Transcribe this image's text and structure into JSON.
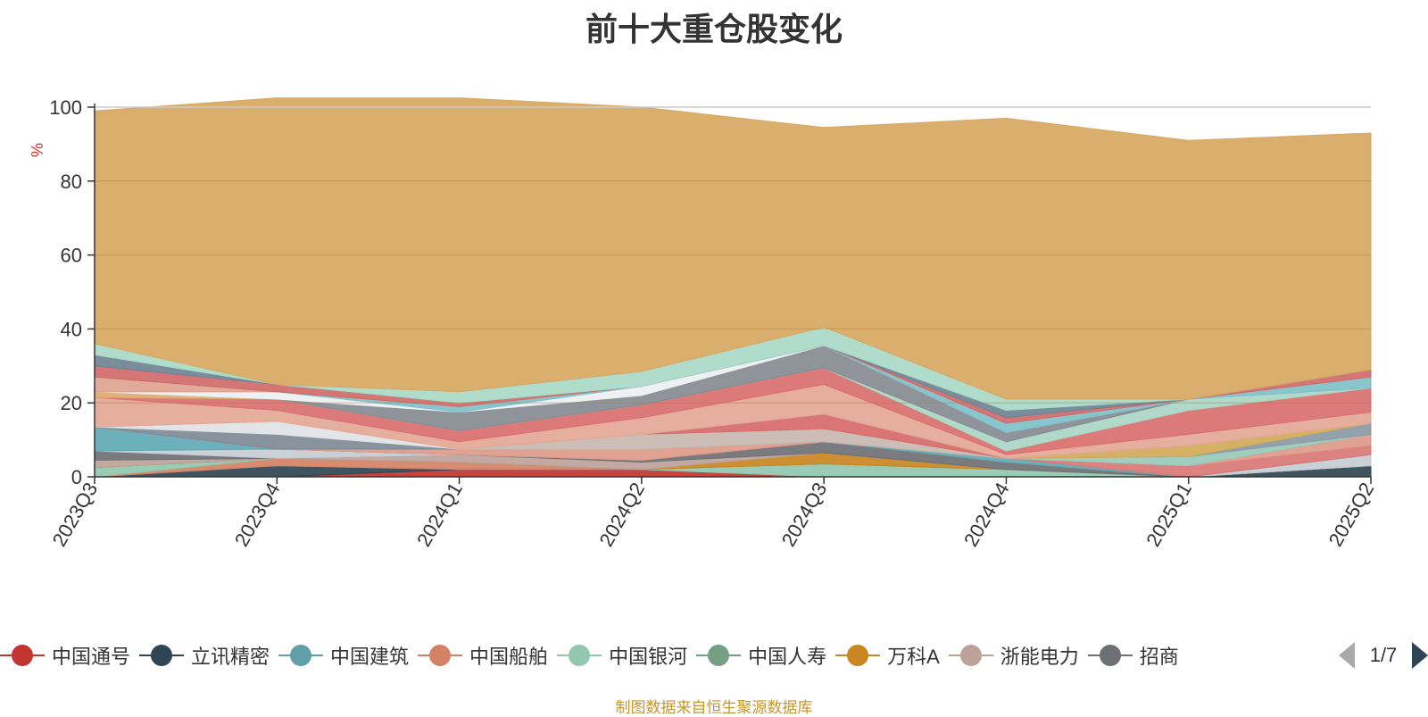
{
  "chart_data": {
    "type": "area",
    "stacked": true,
    "title": "前十大重仓股变化",
    "ylabel": "%",
    "ylim": [
      0,
      100
    ],
    "yticks": [
      0,
      20,
      40,
      60,
      80,
      100
    ],
    "categories": [
      "2023Q3",
      "2023Q4",
      "2024Q1",
      "2024Q2",
      "2024Q3",
      "2024Q4",
      "2025Q1",
      "2025Q2"
    ],
    "series": [
      {
        "name": "中国通号",
        "color": "#c23531",
        "values": [
          0,
          0,
          2,
          2,
          0,
          0,
          0,
          0
        ]
      },
      {
        "name": "立讯精密",
        "color": "#2f4554",
        "values": [
          0,
          3,
          0,
          0,
          0,
          0,
          0,
          3
        ]
      },
      {
        "name": "中国建筑",
        "color": "#61a0a8",
        "values": [
          0,
          0,
          0,
          0,
          0,
          0,
          0,
          0
        ]
      },
      {
        "name": "中国船舶",
        "color": "#d48265",
        "values": [
          0,
          2,
          2,
          0,
          0,
          0,
          0,
          0
        ]
      },
      {
        "name": "中国银河",
        "color": "#91c7ae",
        "values": [
          2.5,
          0,
          0,
          0,
          3.5,
          2,
          0,
          0
        ]
      },
      {
        "name": "中国人寿",
        "color": "#749f83",
        "values": [
          0,
          0,
          0,
          0,
          0,
          0,
          0,
          0
        ]
      },
      {
        "name": "万科A",
        "color": "#ca8622",
        "values": [
          0,
          0,
          0,
          0,
          3,
          0,
          0,
          0
        ]
      },
      {
        "name": "浙能电力",
        "color": "#bda29a",
        "values": [
          2,
          0,
          2,
          2,
          0,
          0,
          0,
          0
        ]
      },
      {
        "name": "招商",
        "color": "#6e7074",
        "values": [
          2.5,
          0,
          0,
          0.5,
          3,
          2,
          0,
          0
        ]
      },
      {
        "name": "",
        "color": "#c4ccd3",
        "values": [
          0,
          2.5,
          0,
          0,
          0,
          0,
          0,
          3
        ]
      },
      {
        "name": "",
        "color": "#5fa9b5",
        "values": [
          6.5,
          0,
          0,
          0,
          0,
          1,
          0,
          0
        ]
      },
      {
        "name": "",
        "color": "#d97775",
        "values": [
          0,
          0,
          0,
          0,
          0,
          0,
          3,
          2.5
        ]
      },
      {
        "name": "",
        "color": "#dd9a8a",
        "values": [
          0,
          0,
          1.5,
          3,
          0,
          0,
          0,
          3
        ]
      },
      {
        "name": "",
        "color": "#99c9b8",
        "values": [
          0,
          0,
          0,
          0,
          0,
          0,
          2.5,
          0
        ]
      },
      {
        "name": "",
        "color": "#8a9aa3",
        "values": [
          0,
          0,
          0,
          0,
          0,
          0,
          0,
          3
        ]
      },
      {
        "name": "",
        "color": "#d2aa58",
        "values": [
          0,
          0,
          0,
          0,
          0,
          0,
          3,
          0
        ]
      },
      {
        "name": "",
        "color": "#c8b8b0",
        "values": [
          0,
          0,
          0,
          4,
          3.5,
          0,
          0,
          0
        ]
      },
      {
        "name": "",
        "color": "#d66a69",
        "values": [
          0,
          0,
          0,
          0,
          4,
          0,
          0,
          0
        ]
      },
      {
        "name": "",
        "color": "#7e8a96",
        "values": [
          0,
          4,
          0,
          0,
          0,
          0,
          0,
          0
        ]
      },
      {
        "name": "",
        "color": "#e0e2e6",
        "values": [
          0,
          3.5,
          0,
          0,
          0,
          0,
          0,
          0
        ]
      },
      {
        "name": "",
        "color": "#e4a794",
        "values": [
          8,
          3,
          2,
          4.5,
          8,
          1,
          3,
          3
        ]
      },
      {
        "name": "",
        "color": "#d96f6e",
        "values": [
          0,
          3,
          3,
          3.5,
          4.5,
          1,
          6.5,
          6.5
        ]
      },
      {
        "name": "",
        "color": "#dcab6e",
        "values": [
          1.5,
          0,
          0,
          0,
          0,
          0,
          0,
          0
        ]
      },
      {
        "name": "",
        "color": "#a9d6c6",
        "values": [
          0,
          0,
          0,
          0,
          0,
          2.5,
          3,
          0
        ]
      },
      {
        "name": "",
        "color": "#858b93",
        "values": [
          0,
          0,
          5,
          2.5,
          6,
          2.5,
          0,
          0
        ]
      },
      {
        "name": "",
        "color": "#edf0f2",
        "values": [
          0,
          2,
          0,
          2.5,
          0,
          0,
          0,
          0
        ]
      },
      {
        "name": "",
        "color": "#7fc0c8",
        "values": [
          0,
          0,
          1.5,
          0,
          0,
          2.5,
          0,
          3
        ]
      },
      {
        "name": "",
        "color": "#dfa490",
        "values": [
          4,
          0,
          0,
          0,
          0,
          0,
          0,
          0
        ]
      },
      {
        "name": "",
        "color": "#cf6a69",
        "values": [
          3,
          2,
          1,
          0,
          0,
          1.5,
          0,
          2
        ]
      },
      {
        "name": "",
        "color": "#6f8392",
        "values": [
          3,
          0,
          0,
          0,
          0,
          2,
          0,
          0
        ]
      },
      {
        "name": "",
        "color": "#a9d9c7",
        "values": [
          3,
          0,
          3,
          4,
          5,
          3,
          0,
          0
        ]
      },
      {
        "name": "",
        "color": "#d7a862",
        "values": [
          63,
          77.5,
          79.5,
          71.5,
          54,
          76,
          70,
          64
        ]
      }
    ]
  },
  "legend": {
    "page": "1/7"
  },
  "footer": {
    "source": "制图数据来自恒生聚源数据库"
  }
}
